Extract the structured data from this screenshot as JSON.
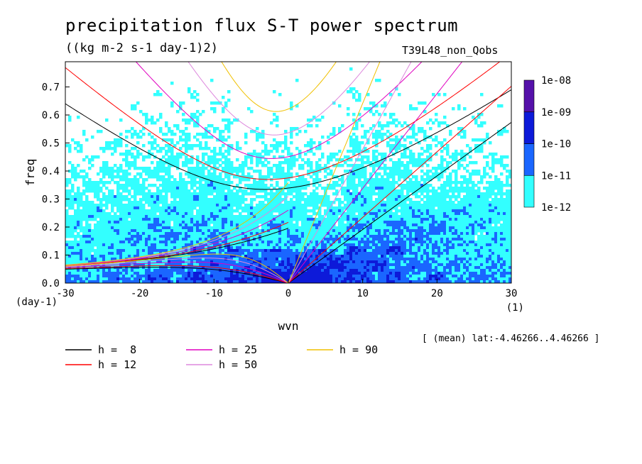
{
  "header": {
    "title": "precipitation flux S-T power spectrum",
    "units": "((kg m-2 s-1 day-1)2)",
    "run_name": "T39L48_non_Qobs",
    "lat_note": "[ (mean) lat:-4.46266..4.46266 ]"
  },
  "chart_data": {
    "type": "heatmap",
    "xlabel": "wvn",
    "ylabel": "freq",
    "xunit": "(1)",
    "yunit": "(day-1)",
    "xlim": [
      -30,
      30
    ],
    "ylim": [
      0,
      0.79
    ],
    "xticks": [
      -30,
      -20,
      -10,
      0,
      10,
      20,
      30
    ],
    "yticks": [
      0.0,
      0.1,
      0.2,
      0.3,
      0.4,
      0.5,
      0.6,
      0.7
    ],
    "xtick_labels": [
      "-30",
      "-20",
      "-10",
      "0",
      "10",
      "20",
      "30"
    ],
    "ytick_labels": [
      "0.0",
      "0.1",
      "0.2",
      "0.3",
      "0.4",
      "0.5",
      "0.6",
      "0.7"
    ],
    "colorbar": {
      "levels": [
        "1e-12",
        "1e-11",
        "1e-10",
        "1e-09",
        "1e-08"
      ],
      "colors": [
        "#33ffff",
        "#1a66ff",
        "#0d1ad9",
        "#5511aa"
      ]
    },
    "dispersion_curves": [
      {
        "name": "h =  8",
        "h": 8,
        "color": "#000000"
      },
      {
        "name": "h = 12",
        "h": 12,
        "color": "#ff0000"
      },
      {
        "name": "h = 25",
        "h": 25,
        "color": "#e000c0"
      },
      {
        "name": "h = 50",
        "h": 50,
        "color": "#dd88dd"
      },
      {
        "name": "h = 90",
        "h": 90,
        "color": "#f0c000"
      }
    ]
  }
}
